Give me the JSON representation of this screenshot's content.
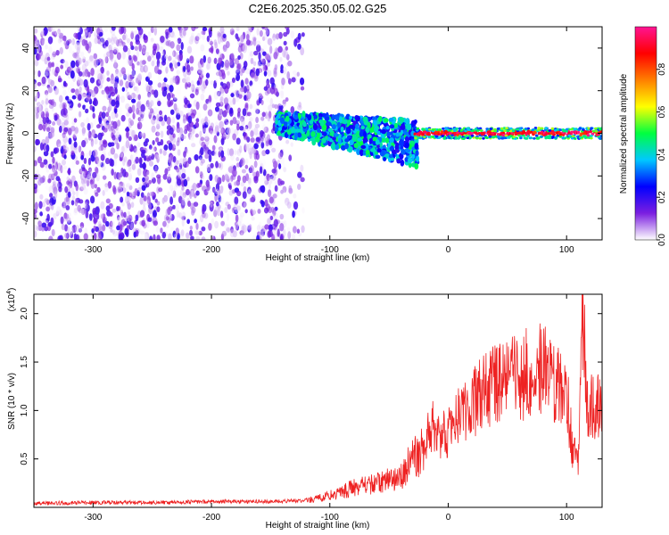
{
  "chart_data": [
    {
      "type": "heatmap",
      "title": "C2E6.2025.350.05.02.G25",
      "xlabel": "Height of straight line (km)",
      "ylabel": "Frequency (Hz)",
      "xlim": [
        -350,
        130
      ],
      "ylim": [
        -50,
        50
      ],
      "x_ticks": [
        -300,
        -200,
        -100,
        0,
        100
      ],
      "y_ticks": [
        -40,
        -20,
        0,
        20,
        40
      ],
      "colorbar": {
        "label": "Normalized spectral amplitude",
        "range": [
          0.0,
          1.0
        ],
        "ticks": [
          "0.0",
          "0.2",
          "0.4",
          "0.6",
          "0.8"
        ],
        "colors": [
          "#ffffff",
          "#7b1fe0",
          "#0000ff",
          "#00c8ff",
          "#00ff40",
          "#ffff00",
          "#ff7f00",
          "#ff0000",
          "#ff1493"
        ]
      },
      "regions": [
        {
          "x_range": [
            -350,
            -130
          ],
          "frequency_spread": [
            -50,
            50
          ],
          "amplitude": [
            0.0,
            0.2
          ],
          "description_level": "noise"
        },
        {
          "x_range": [
            -145,
            -25
          ],
          "frequency_center": [
            5,
            -5
          ],
          "frequency_spread": [
            -15,
            12
          ],
          "amplitude": [
            0.2,
            0.5
          ]
        },
        {
          "x_range": [
            -28,
            130
          ],
          "frequency_center": [
            0,
            1
          ],
          "frequency_spread": [
            -2,
            3
          ],
          "amplitude": [
            0.8,
            1.0
          ]
        }
      ]
    },
    {
      "type": "line",
      "xlabel": "Height of straight line (km)",
      "ylabel": "SNR (10 * v/v)",
      "y_exponent_label": "(x10",
      "y_exponent_power": "4",
      "y_exponent_close": ")",
      "xlim": [
        -350,
        130
      ],
      "ylim": [
        0,
        2.2
      ],
      "x_ticks": [
        -300,
        -200,
        -100,
        0,
        100
      ],
      "y_ticks": [
        0.5,
        1.0,
        1.5,
        2.0
      ],
      "y_tick_labels": [
        "0.5",
        "1.0",
        "1.5",
        "2.0"
      ],
      "color": "#ee2222",
      "series": [
        {
          "name": "SNR",
          "x": [
            -350,
            -300,
            -250,
            -200,
            -150,
            -120,
            -100,
            -80,
            -60,
            -40,
            -30,
            -20,
            -15,
            -10,
            0,
            10,
            20,
            30,
            40,
            50,
            60,
            70,
            80,
            90,
            100,
            105,
            110,
            113,
            118,
            125,
            130
          ],
          "y": [
            0.04,
            0.05,
            0.05,
            0.06,
            0.06,
            0.07,
            0.12,
            0.2,
            0.25,
            0.32,
            0.5,
            0.6,
            0.9,
            0.7,
            0.78,
            0.95,
            1.05,
            1.2,
            1.25,
            1.3,
            1.35,
            1.4,
            1.45,
            1.3,
            1.2,
            0.6,
            0.5,
            2.1,
            1.0,
            1.05,
            1.0
          ]
        }
      ]
    }
  ]
}
